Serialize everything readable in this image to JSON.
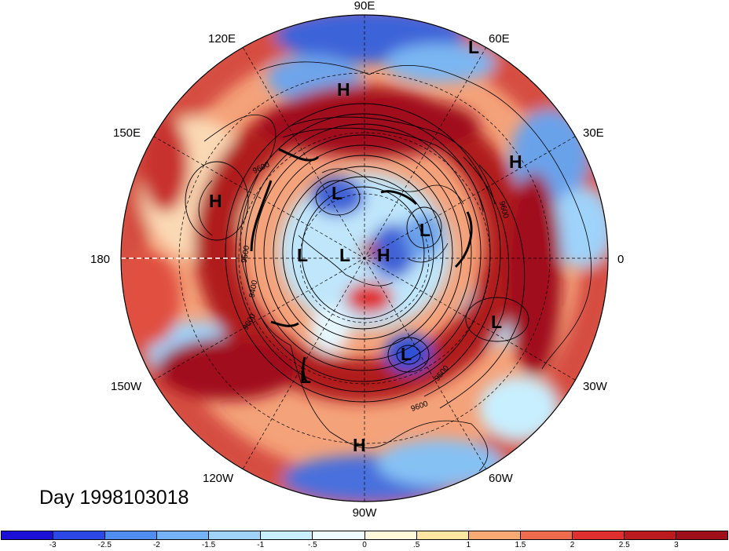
{
  "title": "Day 1998103018",
  "map": {
    "projection": "north-polar-stereographic",
    "longitude_labels": [
      "90E",
      "60E",
      "30E",
      "0",
      "30W",
      "60W",
      "90W",
      "120W",
      "150W",
      "180",
      "150E",
      "120E"
    ],
    "pressure_systems": [
      {
        "type": "H",
        "label": "H"
      },
      {
        "type": "L",
        "label": "L"
      },
      {
        "type": "H",
        "label": "H"
      },
      {
        "type": "H",
        "label": "H"
      },
      {
        "type": "L",
        "label": "L"
      },
      {
        "type": "L",
        "label": "L"
      },
      {
        "type": "L",
        "label": "L"
      },
      {
        "type": "L",
        "label": "L"
      },
      {
        "type": "H",
        "label": "H"
      },
      {
        "type": "L",
        "label": "L"
      },
      {
        "type": "L",
        "label": "L"
      },
      {
        "type": "L",
        "label": "L"
      },
      {
        "type": "H",
        "label": "H"
      }
    ],
    "contour_labels": [
      "9600",
      "9500",
      "9400",
      "9600",
      "9600",
      "9500",
      "9600"
    ]
  },
  "colorbar": {
    "tick_labels": [
      "-3",
      "-2.5",
      "-2",
      "-1.5",
      "-1",
      "-.5",
      "0",
      ".5",
      "1",
      "1.5",
      "2",
      "2.5",
      "3"
    ],
    "colors": [
      "#1c10d6",
      "#2c48e6",
      "#4f8ef0",
      "#74b1f5",
      "#9fd3fa",
      "#c8efff",
      "#eefbff",
      "#fff9dc",
      "#ffe7a3",
      "#f7aa74",
      "#ee6c4d",
      "#df2f2f",
      "#bb1a1e",
      "#a0101a"
    ]
  }
}
